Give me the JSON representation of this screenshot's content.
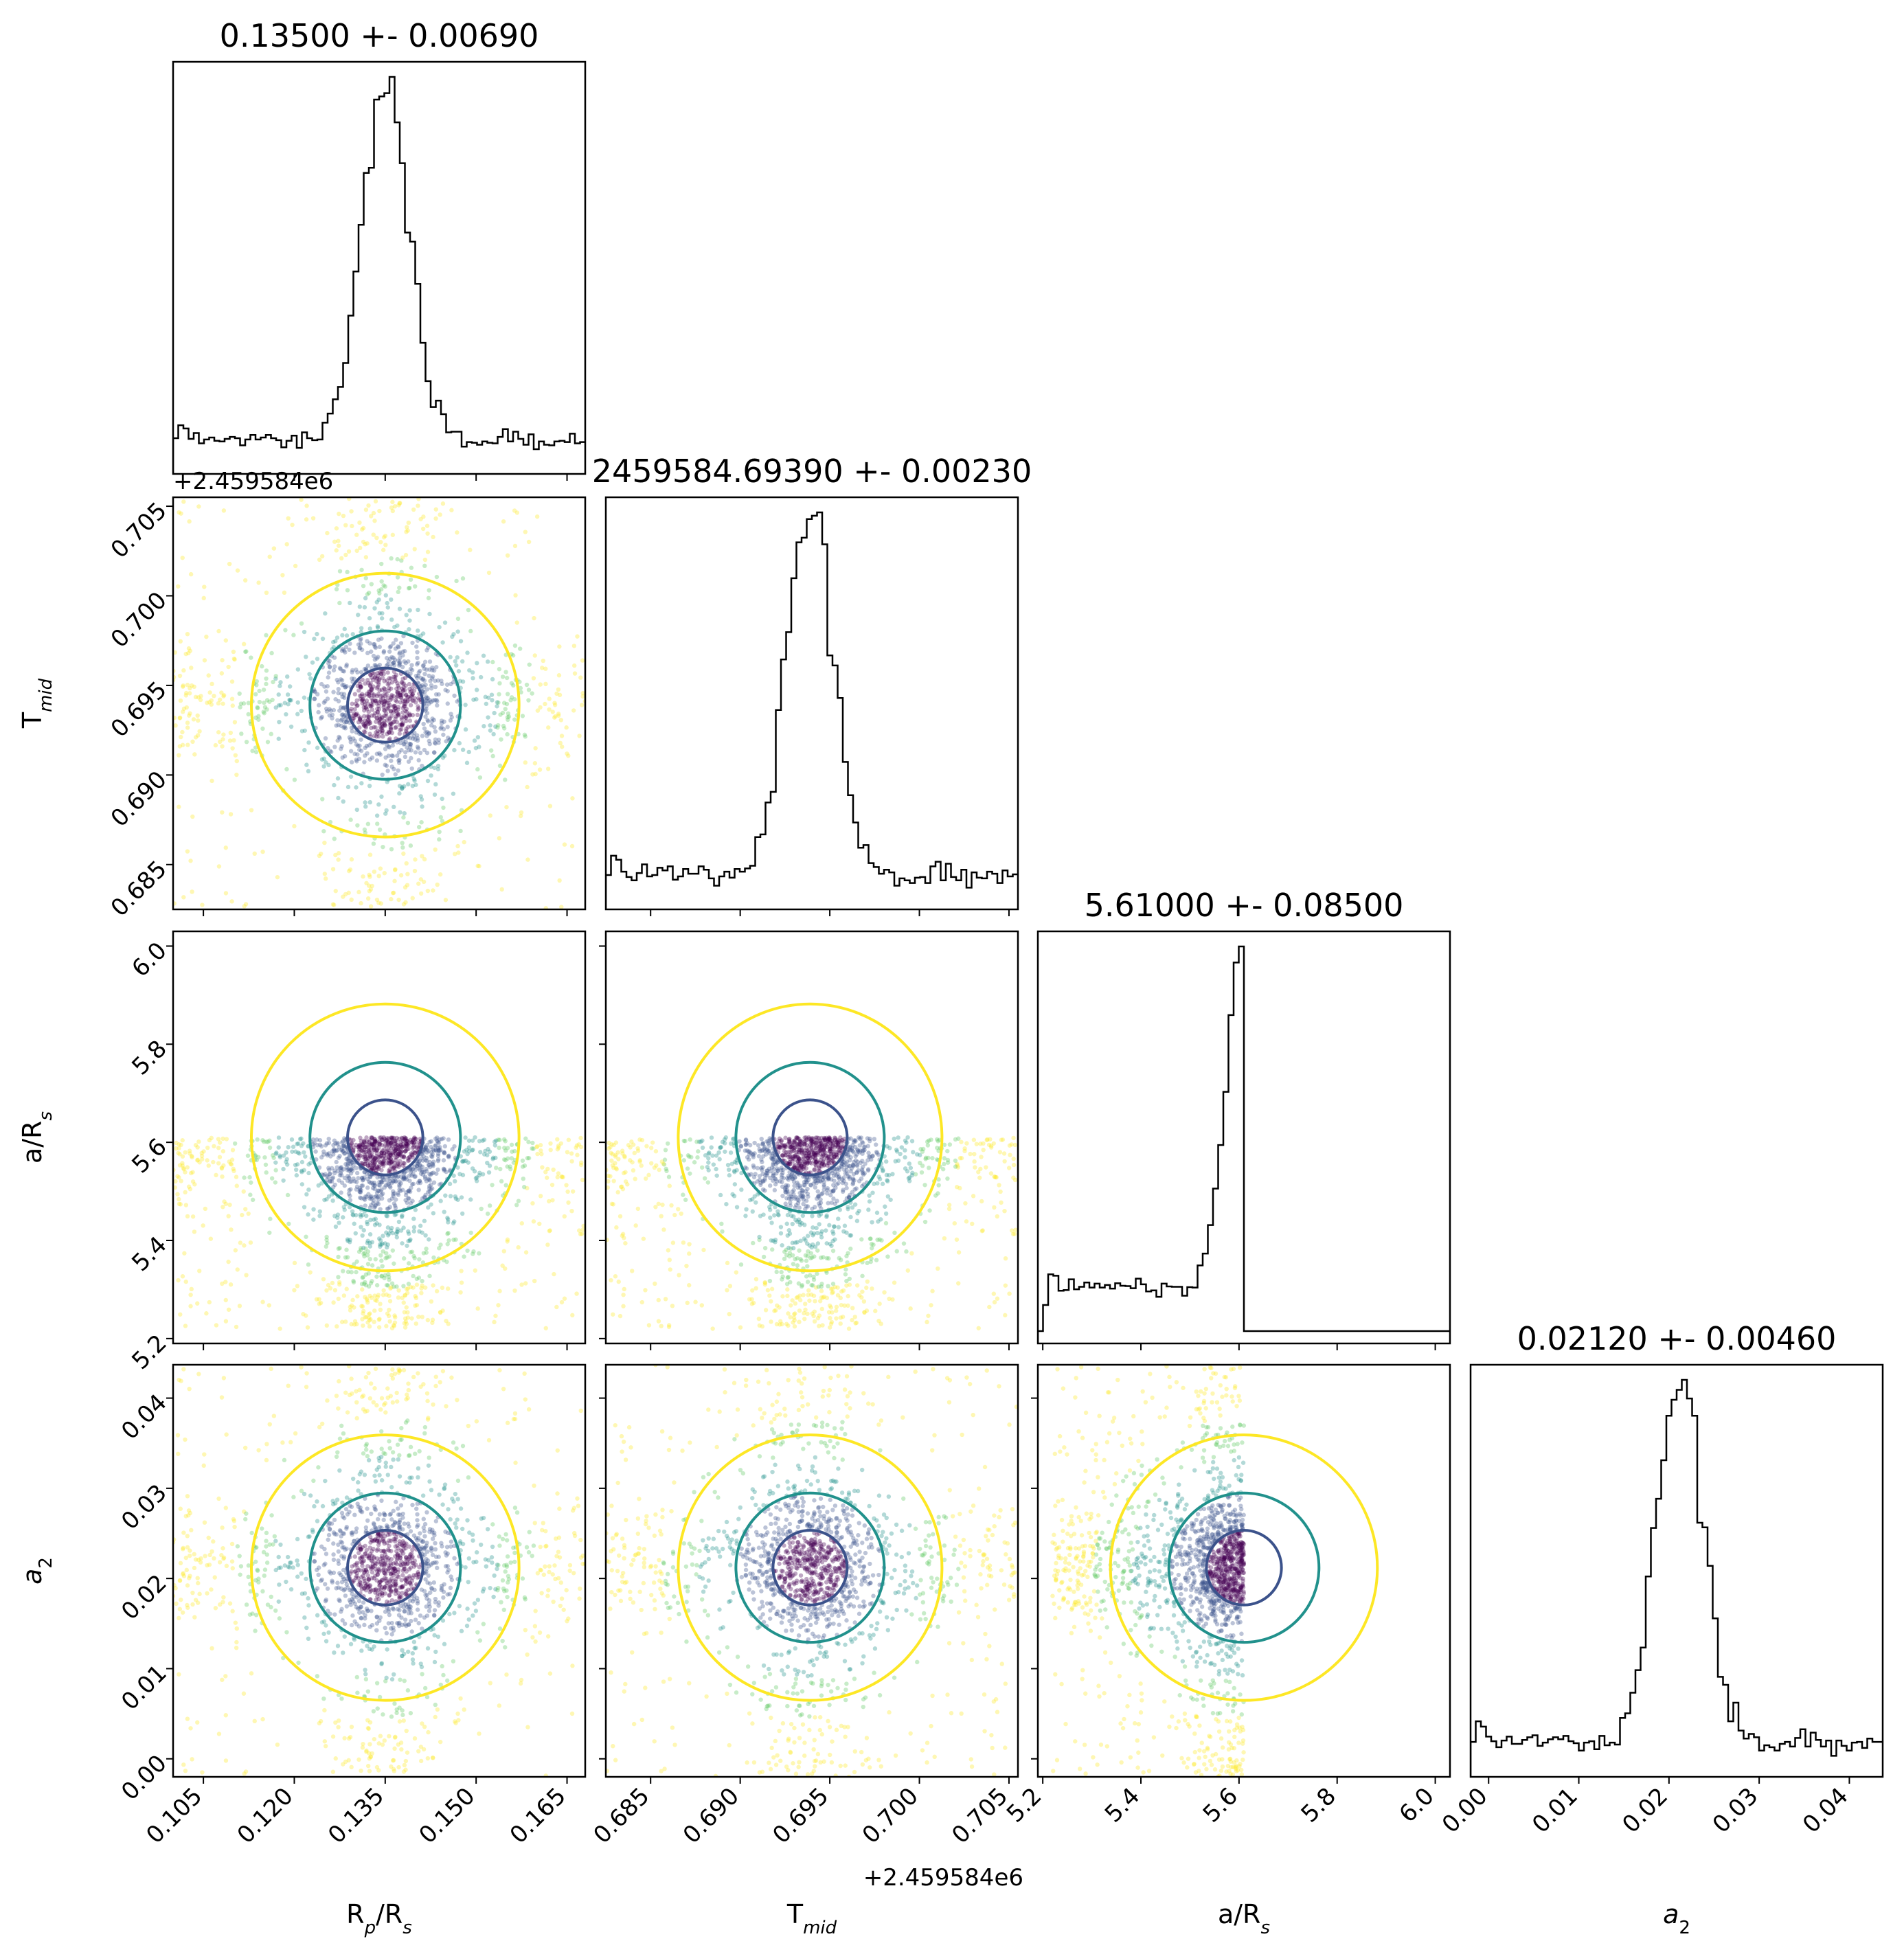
{
  "chart_data": {
    "type": "corner",
    "parameters": [
      {
        "key": "rp",
        "label": "R",
        "sub": "p",
        "tail": "/R",
        "sub2": "s",
        "title": "0.13500 +- 0.00690",
        "median": 0.135,
        "sigma": 0.0069,
        "range": [
          0.1,
          0.168
        ],
        "ticks": [
          "0.105",
          "0.120",
          "0.135",
          "0.150",
          "0.165"
        ],
        "ticks_v": [
          0.105,
          0.12,
          0.135,
          0.15,
          0.165
        ]
      },
      {
        "key": "tmid",
        "label": "T",
        "sub": "mid",
        "tail": "",
        "sub2": "",
        "title": "2459584.69390 +- 0.00230",
        "median": 0.6939,
        "sigma": 0.0023,
        "range": [
          0.6825,
          0.7055
        ],
        "ticks": [
          "0.685",
          "0.690",
          "0.695",
          "0.700",
          "0.705"
        ],
        "ticks_v": [
          0.685,
          0.69,
          0.695,
          0.7,
          0.705
        ],
        "offset": "+2.459584e6"
      },
      {
        "key": "ars",
        "label": "a/R",
        "sub": "s",
        "tail": "",
        "sub2": "",
        "title": "5.61000 +- 0.08500",
        "median": 5.61,
        "sigma": 0.085,
        "range": [
          5.19,
          6.03
        ],
        "ticks": [
          "5.2",
          "5.4",
          "5.6",
          "5.8",
          "6.0"
        ],
        "ticks_v": [
          5.2,
          5.4,
          5.6,
          5.8,
          6.0
        ]
      },
      {
        "key": "a2",
        "label": "a",
        "sub": "2",
        "tail": "",
        "sub2": "",
        "title": "0.02120 +- 0.00460",
        "median": 0.0212,
        "sigma": 0.0046,
        "range": [
          -0.002,
          0.0437
        ],
        "ticks": [
          "0.00",
          "0.01",
          "0.02",
          "0.03",
          "0.04"
        ],
        "ticks_v": [
          0.0,
          0.01,
          0.02,
          0.03,
          0.04
        ],
        "italic": true
      }
    ],
    "contour_colors": [
      "#3b528b",
      "#21918c",
      "#fde725"
    ],
    "point_color_scale": [
      "#440154",
      "#3b528b",
      "#21918c",
      "#5ec962",
      "#fde725"
    ],
    "hist_color": "#000000",
    "x_offset_label": "+2.459584e6",
    "top_left_offset_label": "+2.459584e6"
  }
}
